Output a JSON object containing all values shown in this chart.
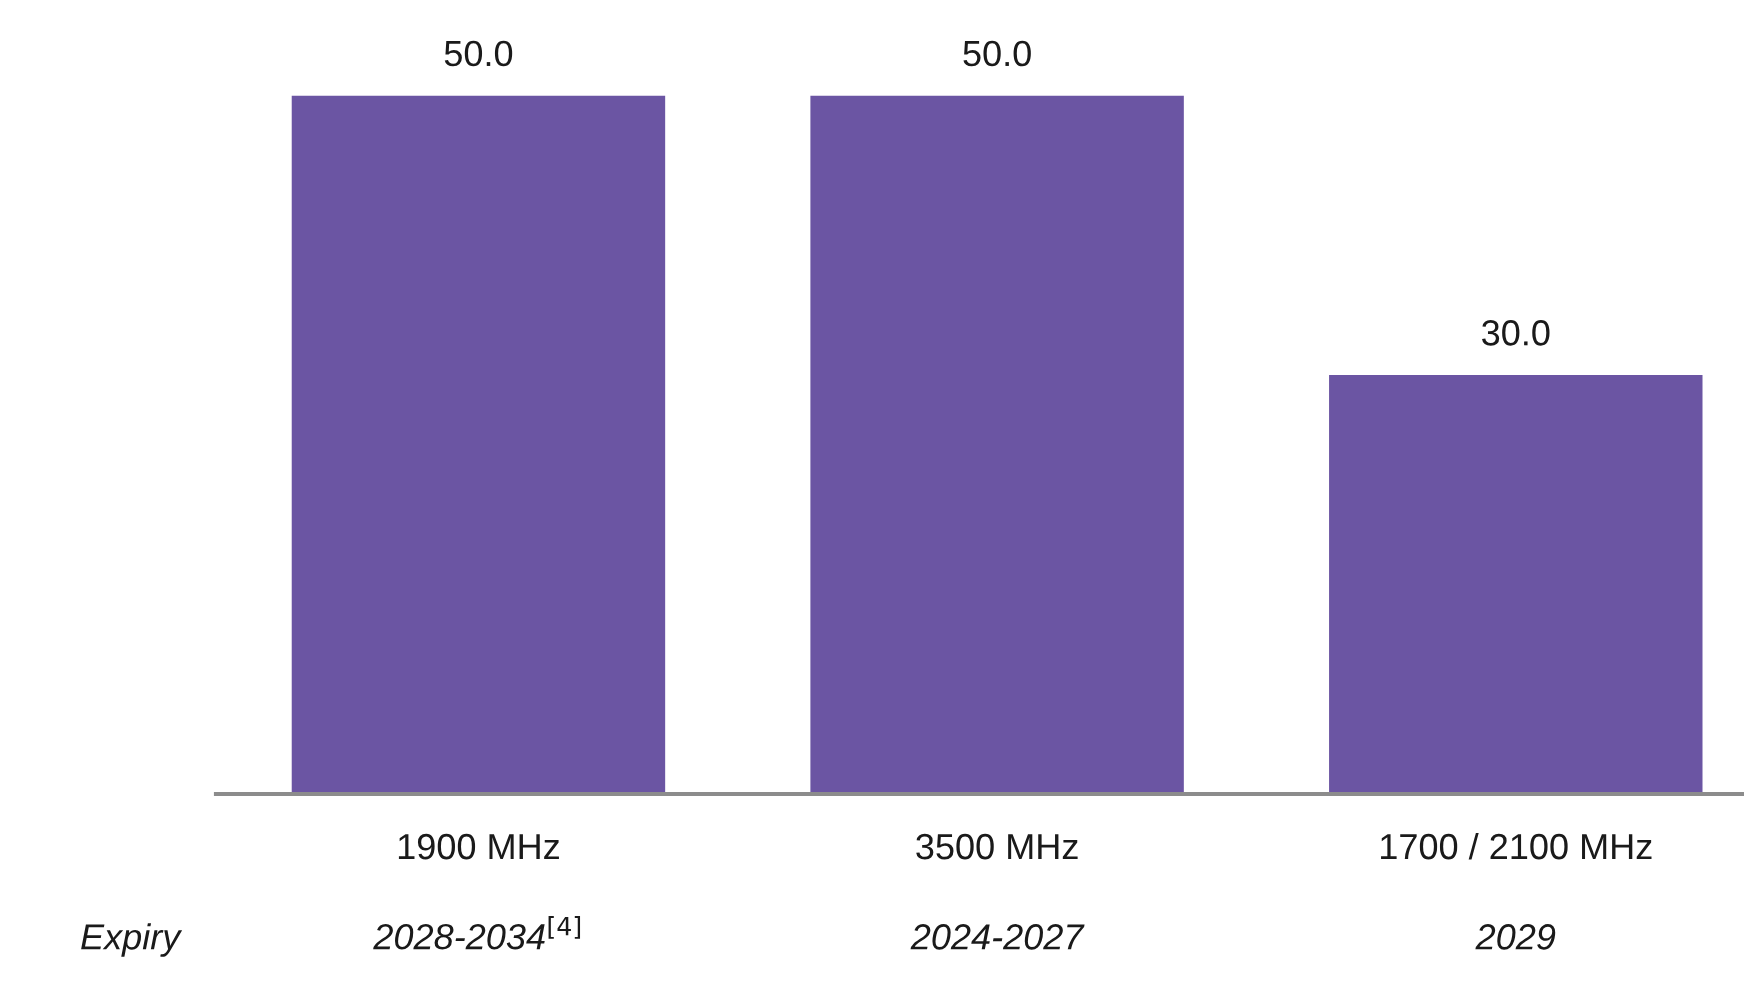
{
  "chart_data": {
    "type": "bar",
    "categories": [
      "1900 MHz",
      "3500 MHz",
      "1700 / 2100 MHz"
    ],
    "values": [
      50,
      50,
      30
    ],
    "value_labels": [
      "50.0",
      "50.0",
      "30.0"
    ],
    "color": "#6b55a3",
    "annotations": [
      "Expiry",
      "2028-2034$^{[4]}$",
      "2024-2027",
      "2029"
    ],
    "grid": false,
    "legend": false
  }
}
